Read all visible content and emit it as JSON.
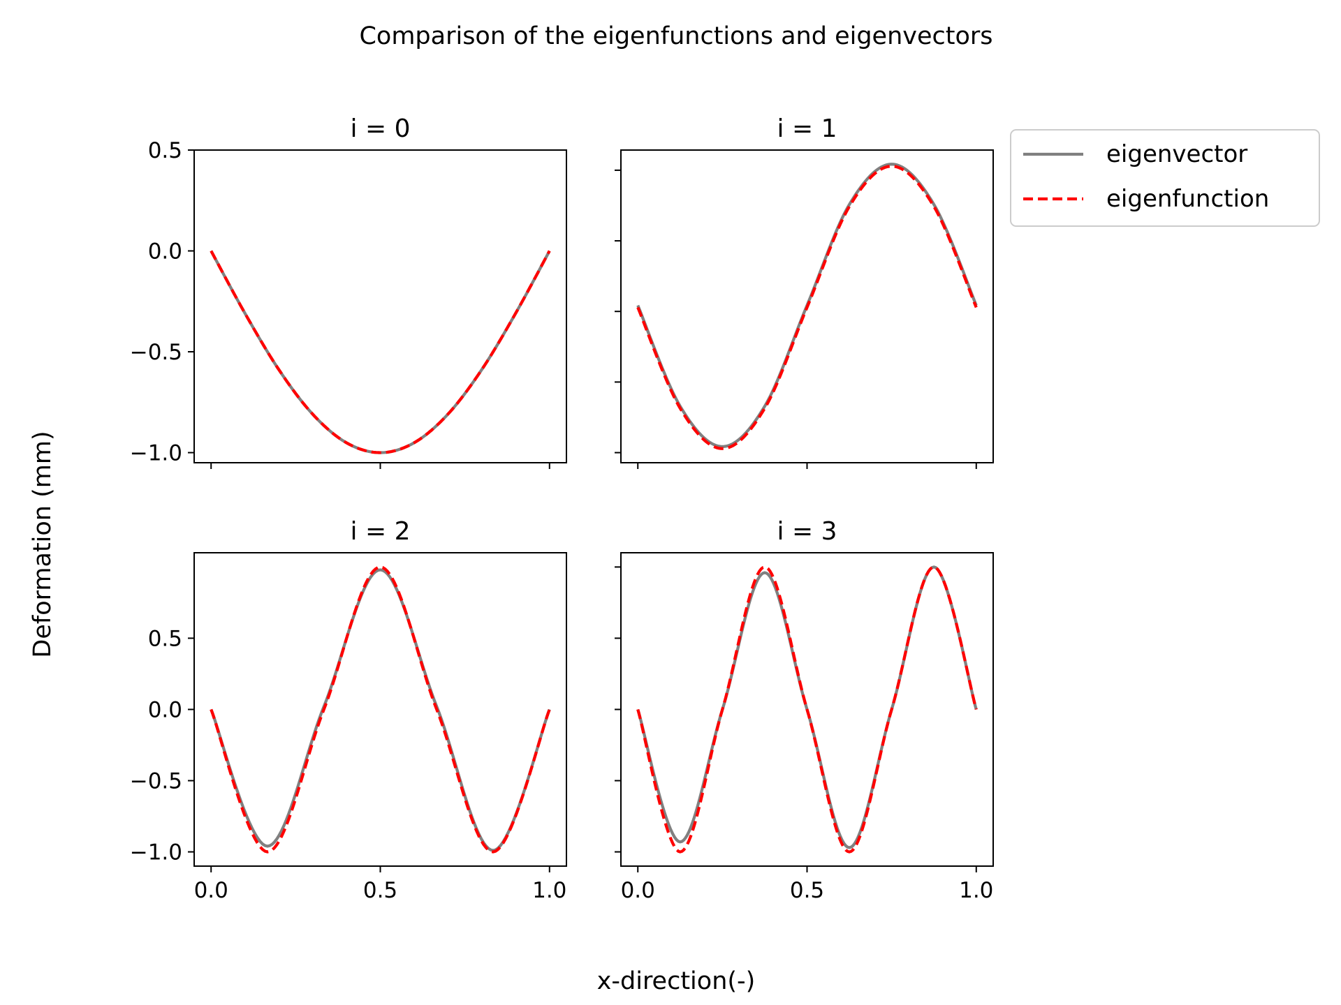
{
  "figure": {
    "suptitle": "Comparison of the eigenfunctions and eigenvectors",
    "supxlabel": "x-direction(-)",
    "supylabel": "Deformation (mm)"
  },
  "legend": {
    "placement": "right of top-right subplot",
    "entries": [
      {
        "label": "eigenvector",
        "color": "#808080",
        "style": "solid"
      },
      {
        "label": "eigenfunction",
        "color": "#ff0000",
        "style": "dashed"
      }
    ]
  },
  "chart_data": [
    {
      "type": "line",
      "title": "i = 0",
      "xlim": [
        -0.05,
        1.05
      ],
      "ylim": [
        -1.05,
        0.5
      ],
      "xticks": [
        0.0,
        0.5,
        1.0
      ],
      "xtick_labels": [
        "",
        "",
        ""
      ],
      "yticks": [
        -1.0,
        -0.5,
        0.0,
        0.5
      ],
      "ytick_labels": [
        "−1.0",
        "−0.5",
        "0.0",
        "0.5"
      ],
      "series": [
        {
          "name": "eigenvector",
          "x": [
            0,
            0.1,
            0.2,
            0.3,
            0.4,
            0.5,
            0.6,
            0.7,
            0.8,
            0.9,
            1.0
          ],
          "y": [
            0,
            -0.309,
            -0.588,
            -0.809,
            -0.951,
            -1.0,
            -0.951,
            -0.809,
            -0.588,
            -0.309,
            0
          ]
        },
        {
          "name": "eigenfunction",
          "x": [
            0,
            0.1,
            0.2,
            0.3,
            0.4,
            0.5,
            0.6,
            0.7,
            0.8,
            0.9,
            1.0
          ],
          "y": [
            0,
            -0.309,
            -0.588,
            -0.809,
            -0.951,
            -1.0,
            -0.951,
            -0.809,
            -0.588,
            -0.309,
            0
          ]
        }
      ]
    },
    {
      "type": "line",
      "title": "i = 1",
      "xlim": [
        -0.05,
        1.05
      ],
      "ylim": [
        -1.05,
        0.5
      ],
      "xticks": [
        0.0,
        0.5,
        1.0
      ],
      "xtick_labels": [
        "",
        "",
        ""
      ],
      "yticks": [
        -1.0,
        -0.65,
        -0.3,
        0.05,
        0.4
      ],
      "ytick_labels": [
        "",
        "",
        "",
        "",
        ""
      ],
      "series": [
        {
          "name": "eigenvector",
          "x": [
            0,
            0.125,
            0.25,
            0.375,
            0.5,
            0.625,
            0.75,
            0.875,
            1.0
          ],
          "y": [
            -0.27,
            -0.77,
            -0.97,
            -0.77,
            -0.27,
            0.23,
            0.43,
            0.23,
            -0.27
          ]
        },
        {
          "name": "eigenfunction",
          "x": [
            0,
            0.125,
            0.25,
            0.375,
            0.5,
            0.625,
            0.75,
            0.875,
            1.0
          ],
          "y": [
            -0.28,
            -0.78,
            -0.98,
            -0.78,
            -0.28,
            0.22,
            0.42,
            0.22,
            -0.28
          ]
        }
      ]
    },
    {
      "type": "line",
      "title": "i = 2",
      "xlim": [
        -0.05,
        1.05
      ],
      "ylim": [
        -1.1,
        1.1
      ],
      "xticks": [
        0.0,
        0.5,
        1.0
      ],
      "xtick_labels": [
        "0.0",
        "0.5",
        "1.0"
      ],
      "yticks": [
        -1.0,
        -0.5,
        0.0,
        0.5
      ],
      "ytick_labels": [
        "−1.0",
        "−0.5",
        "0.0",
        "0.5"
      ],
      "series": [
        {
          "name": "eigenvector",
          "x": [
            0,
            0.1667,
            0.3333,
            0.5,
            0.6667,
            0.8333,
            1.0
          ],
          "y": [
            0,
            -0.96,
            0.02,
            0.98,
            0.02,
            -0.99,
            0
          ]
        },
        {
          "name": "eigenfunction",
          "x": [
            0,
            0.1667,
            0.3333,
            0.5,
            0.6667,
            0.8333,
            1.0
          ],
          "y": [
            0,
            -1.0,
            0,
            1.0,
            0,
            -1.0,
            0
          ]
        }
      ]
    },
    {
      "type": "line",
      "title": "i = 3",
      "xlim": [
        -0.05,
        1.05
      ],
      "ylim": [
        -1.1,
        1.1
      ],
      "xticks": [
        0.0,
        0.5,
        1.0
      ],
      "xtick_labels": [
        "0.0",
        "0.5",
        "1.0"
      ],
      "yticks": [
        -1.0,
        -0.5,
        0.0,
        0.5,
        1.0
      ],
      "ytick_labels": [
        "",
        "",
        "",
        "",
        ""
      ],
      "series": [
        {
          "name": "eigenvector",
          "x": [
            0,
            0.125,
            0.25,
            0.375,
            0.5,
            0.625,
            0.75,
            0.875,
            1.0
          ],
          "y": [
            0,
            -0.93,
            0,
            0.96,
            0,
            -0.97,
            0,
            1.0,
            0
          ]
        },
        {
          "name": "eigenfunction",
          "x": [
            0,
            0.125,
            0.25,
            0.375,
            0.5,
            0.625,
            0.75,
            0.875,
            1.0
          ],
          "y": [
            0,
            -1.0,
            0,
            1.0,
            0,
            -1.0,
            0,
            1.0,
            0
          ]
        }
      ]
    }
  ]
}
